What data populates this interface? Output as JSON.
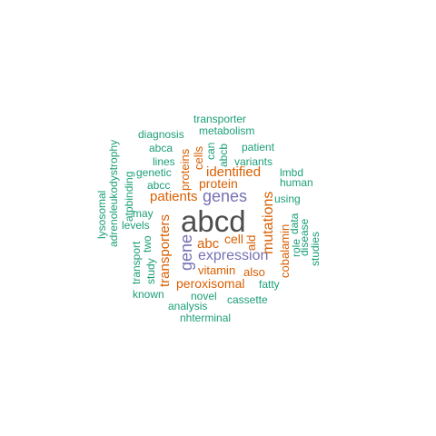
{
  "colors": {
    "teal": "#1b9e77",
    "orange": "#d95f02",
    "purple": "#7570b3",
    "gray": "#4d4d4d"
  },
  "words": [
    {
      "text": "abcd",
      "color": "gray",
      "weight": 10
    },
    {
      "text": "genes",
      "color": "purple",
      "weight": 5
    },
    {
      "text": "expression",
      "color": "purple",
      "weight": 5
    },
    {
      "text": "gene",
      "color": "purple",
      "weight": 5
    },
    {
      "text": "mutations",
      "color": "orange",
      "weight": 4
    },
    {
      "text": "identified",
      "color": "orange",
      "weight": 4
    },
    {
      "text": "patients",
      "color": "orange",
      "weight": 4
    },
    {
      "text": "protein",
      "color": "orange",
      "weight": 4
    },
    {
      "text": "abc",
      "color": "orange",
      "weight": 4
    },
    {
      "text": "peroxisomal",
      "color": "orange",
      "weight": 4
    },
    {
      "text": "transporters",
      "color": "orange",
      "weight": 4
    },
    {
      "text": "vitamin",
      "color": "orange",
      "weight": 3
    },
    {
      "text": "cell",
      "color": "orange",
      "weight": 3
    },
    {
      "text": "ald",
      "color": "orange",
      "weight": 3
    },
    {
      "text": "cobalamin",
      "color": "orange",
      "weight": 3
    },
    {
      "text": "proteins",
      "color": "orange",
      "weight": 3
    },
    {
      "text": "also",
      "color": "orange",
      "weight": 3
    },
    {
      "text": "cells",
      "color": "orange",
      "weight": 3
    },
    {
      "text": "transporter",
      "color": "teal",
      "weight": 2
    },
    {
      "text": "metabolism",
      "color": "teal",
      "weight": 2
    },
    {
      "text": "diagnosis",
      "color": "teal",
      "weight": 2
    },
    {
      "text": "abca",
      "color": "teal",
      "weight": 2
    },
    {
      "text": "patient",
      "color": "teal",
      "weight": 2
    },
    {
      "text": "lines",
      "color": "teal",
      "weight": 2
    },
    {
      "text": "variants",
      "color": "teal",
      "weight": 2
    },
    {
      "text": "genetic",
      "color": "teal",
      "weight": 2
    },
    {
      "text": "lmbd",
      "color": "teal",
      "weight": 2
    },
    {
      "text": "abcc",
      "color": "teal",
      "weight": 2
    },
    {
      "text": "human",
      "color": "teal",
      "weight": 2
    },
    {
      "text": "using",
      "color": "teal",
      "weight": 2
    },
    {
      "text": "may",
      "color": "teal",
      "weight": 2
    },
    {
      "text": "levels",
      "color": "teal",
      "weight": 2
    },
    {
      "text": "fatty",
      "color": "teal",
      "weight": 2
    },
    {
      "text": "known",
      "color": "teal",
      "weight": 2
    },
    {
      "text": "novel",
      "color": "teal",
      "weight": 2
    },
    {
      "text": "cassette",
      "color": "teal",
      "weight": 2
    },
    {
      "text": "analysis",
      "color": "teal",
      "weight": 2
    },
    {
      "text": "nhterminal",
      "color": "teal",
      "weight": 2
    },
    {
      "text": "adrenoleukodystrophy",
      "color": "teal",
      "weight": 2
    },
    {
      "text": "lysosomal",
      "color": "teal",
      "weight": 2
    },
    {
      "text": "atpbinding",
      "color": "teal",
      "weight": 2
    },
    {
      "text": "transport",
      "color": "teal",
      "weight": 2
    },
    {
      "text": "two",
      "color": "teal",
      "weight": 2
    },
    {
      "text": "study",
      "color": "teal",
      "weight": 2
    },
    {
      "text": "can",
      "color": "teal",
      "weight": 2
    },
    {
      "text": "abcb",
      "color": "teal",
      "weight": 2
    },
    {
      "text": "data",
      "color": "teal",
      "weight": 2
    },
    {
      "text": "disease",
      "color": "teal",
      "weight": 2
    },
    {
      "text": "role",
      "color": "teal",
      "weight": 2
    },
    {
      "text": "studies",
      "color": "teal",
      "weight": 2
    }
  ]
}
